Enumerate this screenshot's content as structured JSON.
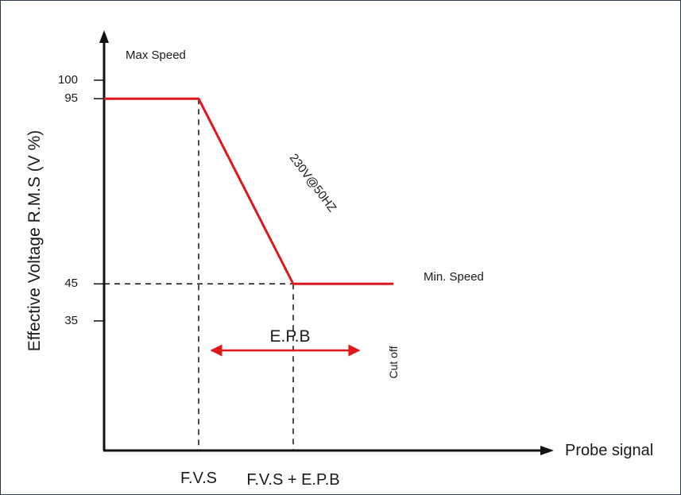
{
  "chart_data": {
    "type": "line",
    "ylabel": "Effective Voltage R.M.S (V %)",
    "xlabel": "Probe signal",
    "x_ticks": [
      {
        "id": "fvs",
        "label": "F.V.S",
        "pos": 1
      },
      {
        "id": "fvs_epb",
        "label": "F.V.S + E.P.B",
        "pos": 2
      }
    ],
    "y_ticks": [
      100,
      95,
      45,
      35
    ],
    "ylim": [
      0,
      112
    ],
    "xlim": [
      0,
      3
    ],
    "series": [
      {
        "color": "#e0161b",
        "points": [
          [
            0,
            95
          ],
          [
            1,
            95
          ],
          [
            2,
            45
          ],
          [
            3.06,
            45
          ]
        ]
      }
    ],
    "annotations": {
      "max_speed": "Max Speed",
      "min_speed": "Min. Speed",
      "slope_label": "230V@50HZ",
      "epb": "E.P.B",
      "cut_off": "Cut off"
    }
  }
}
